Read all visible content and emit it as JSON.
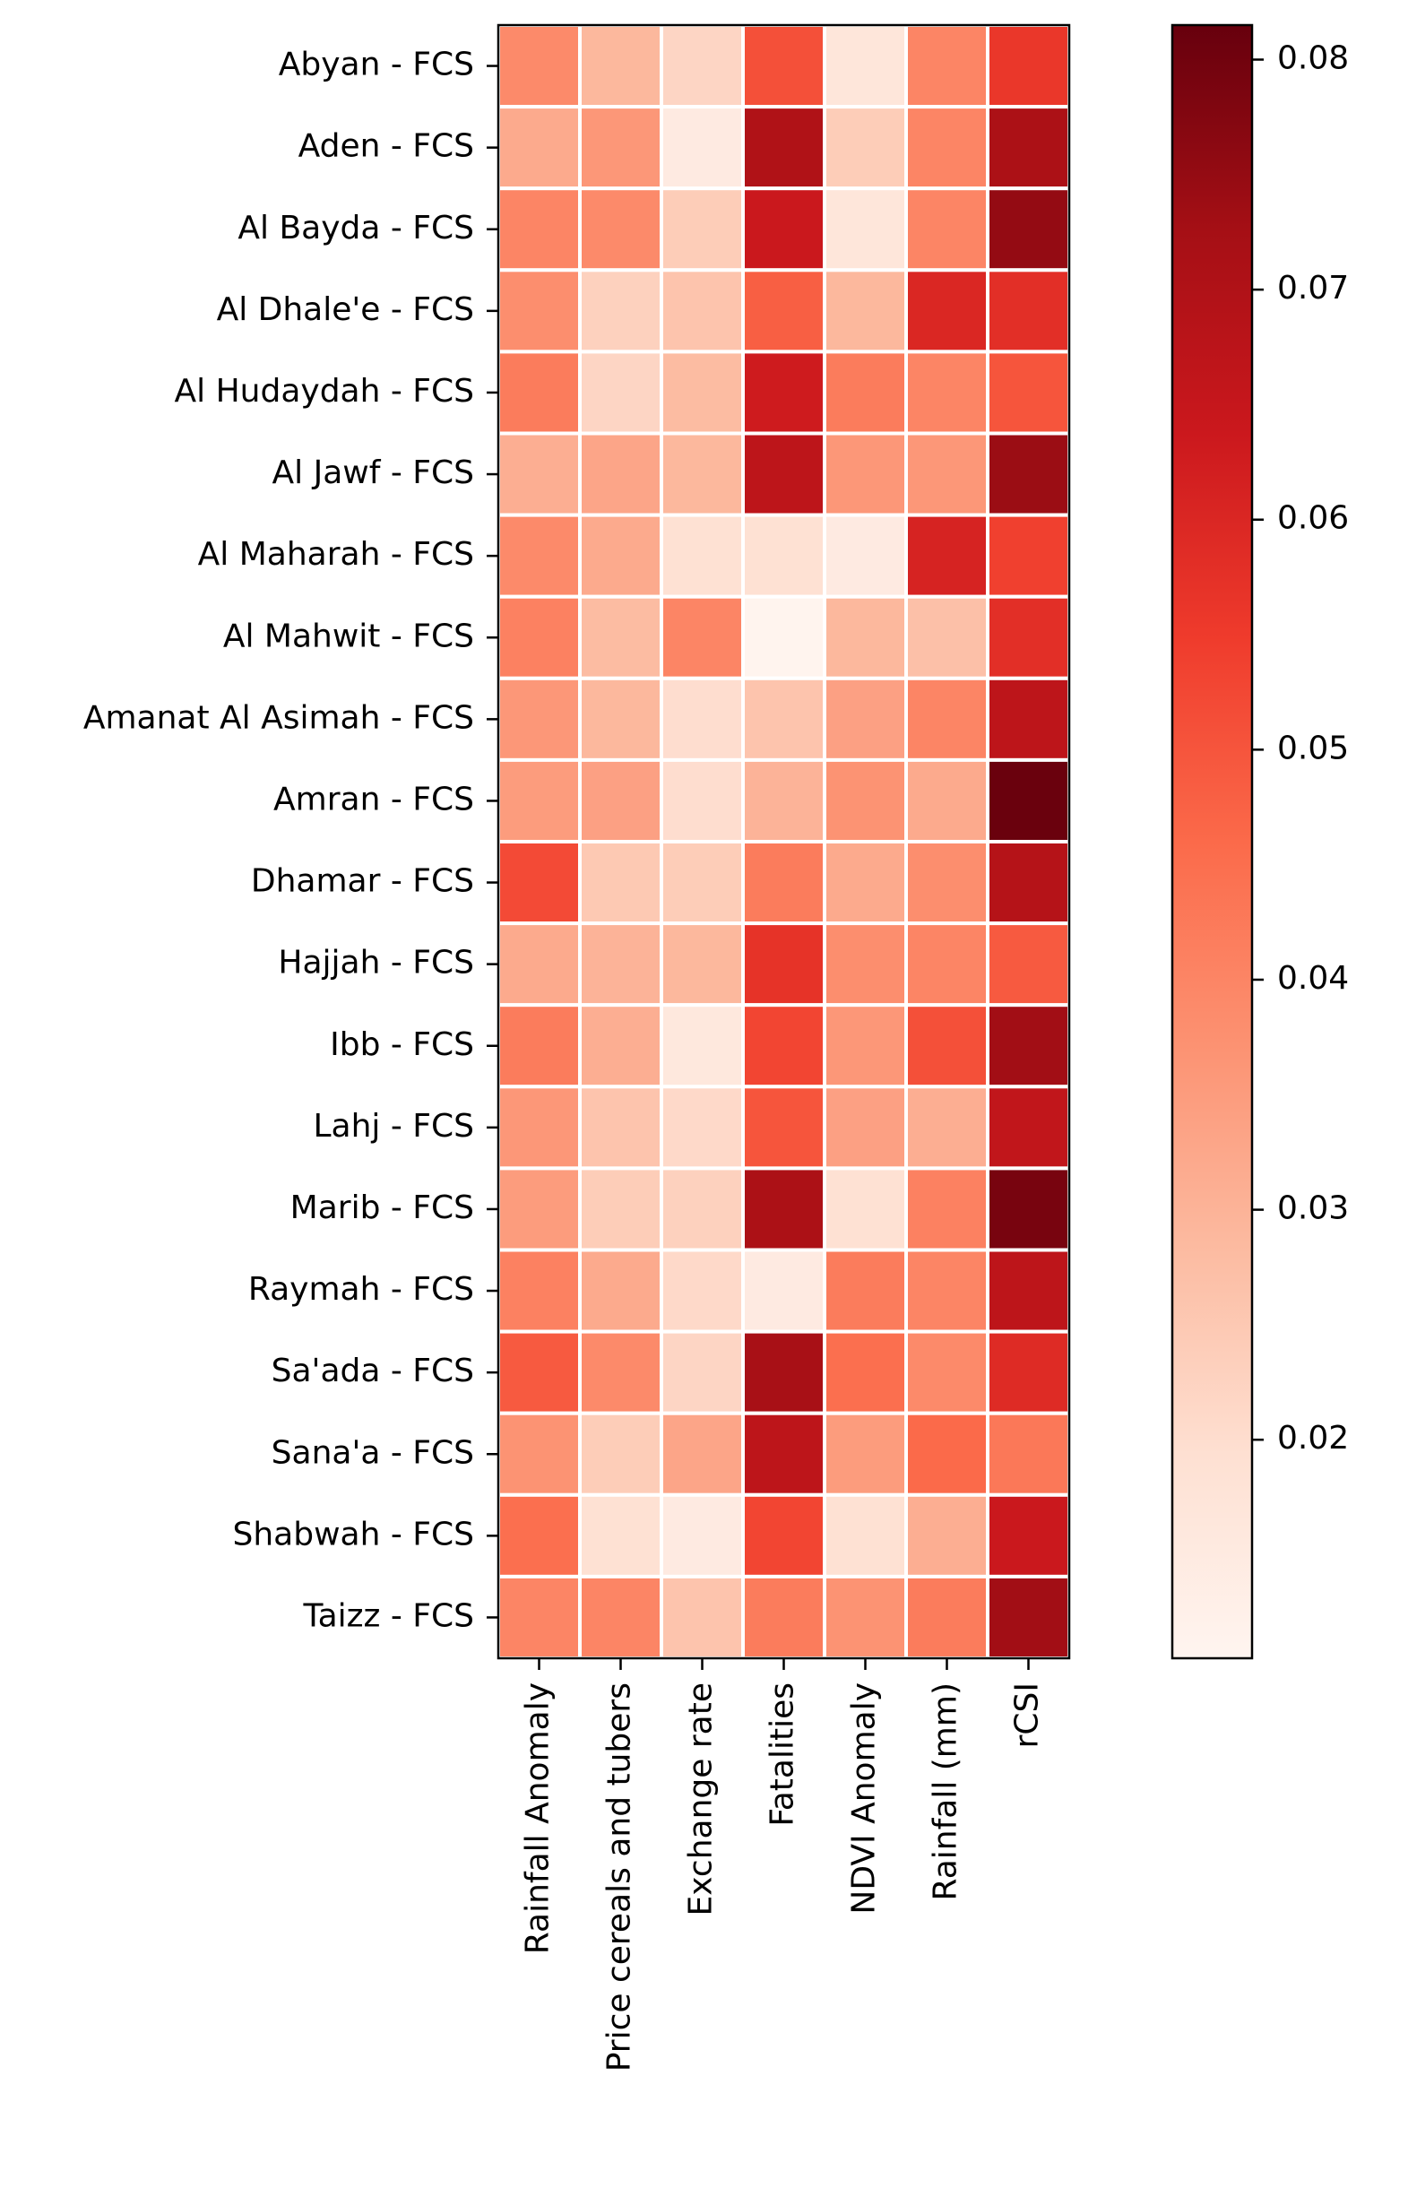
{
  "chart_data": {
    "type": "heatmap",
    "title": "",
    "xlabel": "",
    "ylabel": "",
    "columns": [
      "Rainfall Anomaly",
      "Price cereals and tubers",
      "Exchange rate",
      "Fatalities",
      "NDVI Anomaly",
      "Rainfall (mm)",
      "rCSI"
    ],
    "rows": [
      "Abyan - FCS",
      "Aden - FCS",
      "Al Bayda - FCS",
      "Al Dhale'e - FCS",
      "Al Hudaydah - FCS",
      "Al Jawf - FCS",
      "Al Maharah - FCS",
      "Al Mahwit - FCS",
      "Amanat Al Asimah - FCS",
      "Amran - FCS",
      "Dhamar - FCS",
      "Hajjah - FCS",
      "Ibb - FCS",
      "Lahj - FCS",
      "Marib - FCS",
      "Raymah - FCS",
      "Sa'ada - FCS",
      "Sana'a - FCS",
      "Shabwah - FCS",
      "Taizz - FCS"
    ],
    "values": [
      [
        0.039,
        0.029,
        0.022,
        0.051,
        0.017,
        0.04,
        0.056
      ],
      [
        0.032,
        0.036,
        0.015,
        0.07,
        0.024,
        0.04,
        0.071
      ],
      [
        0.04,
        0.039,
        0.024,
        0.064,
        0.017,
        0.04,
        0.075
      ],
      [
        0.038,
        0.023,
        0.026,
        0.048,
        0.029,
        0.06,
        0.058
      ],
      [
        0.042,
        0.022,
        0.028,
        0.063,
        0.042,
        0.04,
        0.05
      ],
      [
        0.031,
        0.033,
        0.029,
        0.067,
        0.036,
        0.036,
        0.074
      ],
      [
        0.039,
        0.032,
        0.019,
        0.019,
        0.015,
        0.061,
        0.054
      ],
      [
        0.041,
        0.028,
        0.04,
        0.011,
        0.029,
        0.027,
        0.058
      ],
      [
        0.036,
        0.029,
        0.02,
        0.026,
        0.034,
        0.04,
        0.067
      ],
      [
        0.035,
        0.034,
        0.02,
        0.03,
        0.037,
        0.032,
        0.081
      ],
      [
        0.052,
        0.025,
        0.024,
        0.042,
        0.032,
        0.038,
        0.069
      ],
      [
        0.032,
        0.03,
        0.029,
        0.057,
        0.038,
        0.04,
        0.049
      ],
      [
        0.042,
        0.031,
        0.016,
        0.053,
        0.036,
        0.051,
        0.073
      ],
      [
        0.036,
        0.026,
        0.021,
        0.05,
        0.034,
        0.031,
        0.066
      ],
      [
        0.035,
        0.024,
        0.023,
        0.071,
        0.019,
        0.041,
        0.079
      ],
      [
        0.041,
        0.032,
        0.021,
        0.015,
        0.042,
        0.04,
        0.067
      ],
      [
        0.049,
        0.039,
        0.022,
        0.072,
        0.045,
        0.039,
        0.059
      ],
      [
        0.037,
        0.024,
        0.033,
        0.067,
        0.035,
        0.046,
        0.043
      ],
      [
        0.045,
        0.019,
        0.015,
        0.053,
        0.019,
        0.031,
        0.064
      ],
      [
        0.04,
        0.04,
        0.026,
        0.042,
        0.037,
        0.042,
        0.073
      ]
    ],
    "colorbar": {
      "min": 0.0105,
      "max": 0.0815,
      "ticks": [
        0.02,
        0.03,
        0.04,
        0.05,
        0.06,
        0.07,
        0.08
      ],
      "tick_labels": [
        "0.02",
        "0.03",
        "0.04",
        "0.05",
        "0.06",
        "0.07",
        "0.08"
      ],
      "colormap": "Reds"
    },
    "cell_border_color": "#ffffff",
    "grid": false,
    "legend": "colorbar-right"
  }
}
